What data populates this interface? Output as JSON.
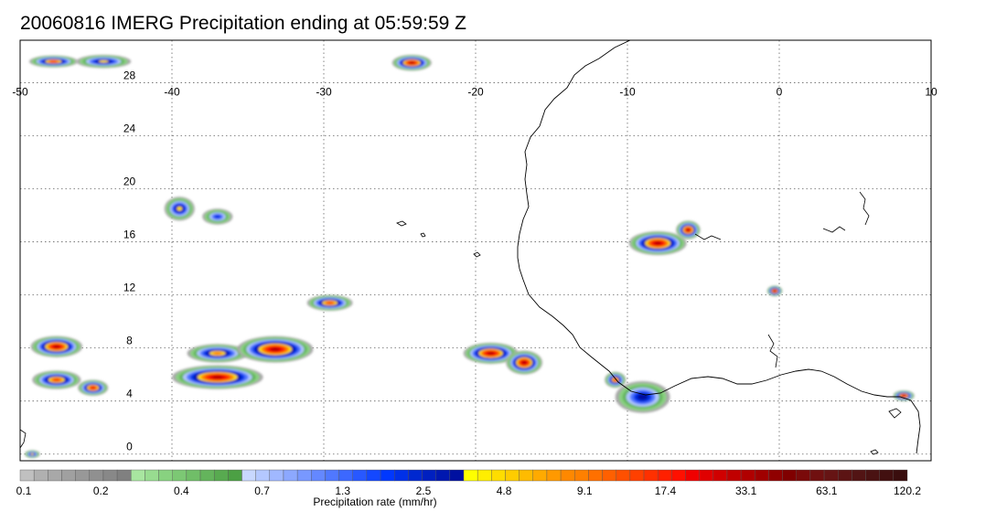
{
  "title": "20060816 IMERG Precipitation ending at 05:59:59 Z",
  "map": {
    "lon_range": [
      -50,
      10
    ],
    "lat_range": [
      -0.5,
      31.2
    ],
    "lon_ticks": [
      -50,
      -40,
      -30,
      -20,
      -10,
      0,
      10
    ],
    "lon_tick_labels": [
      "-50",
      "-40",
      "-30",
      "-20",
      "-10",
      "0",
      "10"
    ],
    "lat_ticks": [
      28,
      24,
      20,
      16,
      12,
      8,
      4,
      0
    ],
    "lat_tick_labels": [
      "28",
      "24",
      "20",
      "16",
      "12",
      "8",
      "4",
      "0"
    ],
    "gridlines": true,
    "grid_style": "dotted"
  },
  "colorbar": {
    "title": "Precipitation rate (mm/hr)",
    "labels": [
      "0.1",
      "0.2",
      "0.4",
      "0.7",
      "1.3",
      "2.5",
      "4.8",
      "9.1",
      "17.4",
      "33.1",
      "63.1",
      "120.2"
    ],
    "colors": [
      "#c0c0c0",
      "#b0b0b0",
      "#a8a8a8",
      "#a0a0a0",
      "#989898",
      "#909090",
      "#888888",
      "#808080",
      "#a8e6a0",
      "#98dc90",
      "#88d280",
      "#7cc874",
      "#70be68",
      "#64b45c",
      "#58aa50",
      "#4ca044",
      "#c8d8ff",
      "#b4c8ff",
      "#a0b8ff",
      "#8ca8ff",
      "#7898ff",
      "#6488ff",
      "#5078ff",
      "#3c68ff",
      "#2858ff",
      "#1448ff",
      "#0038ff",
      "#0030e8",
      "#0028d0",
      "#0020c0",
      "#0018b0",
      "#0010a0",
      "#ffff00",
      "#ffee00",
      "#ffdd00",
      "#ffcc00",
      "#ffbb00",
      "#ffaa00",
      "#ff9900",
      "#ff8800",
      "#ff8000",
      "#ff7000",
      "#ff6000",
      "#ff5000",
      "#ff4000",
      "#ff3000",
      "#ff2000",
      "#ff1000",
      "#f00000",
      "#e00000",
      "#d00000",
      "#c00000",
      "#b00000",
      "#a00000",
      "#900000",
      "#800000",
      "#7a0a0a",
      "#701010",
      "#661414",
      "#5c1414",
      "#521414",
      "#4a1212",
      "#421010",
      "#3a0e0e"
    ]
  },
  "precip_cells": [
    {
      "lon": -47.8,
      "lat": 29.6,
      "rx": 1.6,
      "ry": 0.45,
      "level": 10
    },
    {
      "lon": -44.5,
      "lat": 29.6,
      "rx": 1.8,
      "ry": 0.5,
      "level": 8
    },
    {
      "lon": -24.2,
      "lat": 29.5,
      "rx": 1.3,
      "ry": 0.6,
      "level": 12
    },
    {
      "lon": -39.5,
      "lat": 18.5,
      "rx": 1.0,
      "ry": 0.9,
      "level": 8
    },
    {
      "lon": -37.0,
      "lat": 17.9,
      "rx": 1.0,
      "ry": 0.6,
      "level": 6
    },
    {
      "lon": -8.0,
      "lat": 15.9,
      "rx": 1.9,
      "ry": 0.9,
      "level": 12
    },
    {
      "lon": -6.0,
      "lat": 16.9,
      "rx": 0.8,
      "ry": 0.7,
      "level": 14
    },
    {
      "lon": -0.3,
      "lat": 12.3,
      "rx": 0.5,
      "ry": 0.4,
      "level": 12
    },
    {
      "lon": -29.6,
      "lat": 11.4,
      "rx": 1.5,
      "ry": 0.6,
      "level": 10
    },
    {
      "lon": -47.6,
      "lat": 8.1,
      "rx": 1.7,
      "ry": 0.8,
      "level": 12
    },
    {
      "lon": -47.6,
      "lat": 5.6,
      "rx": 1.6,
      "ry": 0.7,
      "level": 10
    },
    {
      "lon": -45.2,
      "lat": 5.0,
      "rx": 1.0,
      "ry": 0.6,
      "level": 11
    },
    {
      "lon": -37.0,
      "lat": 5.8,
      "rx": 3.0,
      "ry": 0.9,
      "level": 14
    },
    {
      "lon": -37.0,
      "lat": 7.6,
      "rx": 2.0,
      "ry": 0.7,
      "level": 9
    },
    {
      "lon": -33.2,
      "lat": 7.9,
      "rx": 2.5,
      "ry": 1.0,
      "level": 12
    },
    {
      "lon": -19.0,
      "lat": 7.6,
      "rx": 1.8,
      "ry": 0.8,
      "level": 12
    },
    {
      "lon": -16.8,
      "lat": 6.9,
      "rx": 1.2,
      "ry": 0.9,
      "level": 15
    },
    {
      "lon": -10.8,
      "lat": 5.6,
      "rx": 0.7,
      "ry": 0.6,
      "level": 10
    },
    {
      "lon": -9.0,
      "lat": 4.3,
      "rx": 1.8,
      "ry": 1.2,
      "level": 7
    },
    {
      "lon": 8.2,
      "lat": 4.4,
      "rx": 0.7,
      "ry": 0.4,
      "level": 12
    },
    {
      "lon": -49.2,
      "lat": 0.0,
      "rx": 0.5,
      "ry": 0.3,
      "level": 8
    }
  ]
}
